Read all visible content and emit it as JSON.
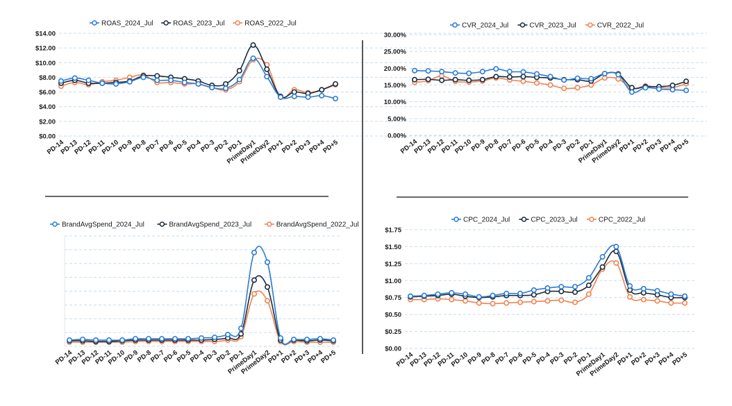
{
  "colors": {
    "s2024": "#2a7bd5",
    "s2023": "#1b2b3c",
    "s2022": "#f0834f",
    "grid": "#c7dcf0"
  },
  "chart_data": [
    {
      "type": "line",
      "position": "top-left",
      "categories": [
        "PD-14",
        "PD-13",
        "PD-12",
        "PD-11",
        "PD-10",
        "PD-9",
        "PD-8",
        "PD-7",
        "PD-6",
        "PD-5",
        "PD-4",
        "PD-3",
        "PD-2",
        "PD-1",
        "PrimeDay1",
        "PrimeDay2",
        "PD+1",
        "PD+2",
        "PD+3",
        "PD+4",
        "PD+5"
      ],
      "y_ticks": [
        "$0.00",
        "$2.00",
        "$4.00",
        "$6.00",
        "$8.00",
        "$10.00",
        "$12.00",
        "$14.00"
      ],
      "ylim": [
        0,
        14
      ],
      "legend_position": "top",
      "series": [
        {
          "name": "ROAS_2024_Jul",
          "values": [
            7.5,
            7.9,
            7.6,
            7.2,
            7.1,
            7.4,
            8.0,
            7.6,
            7.6,
            7.3,
            7.1,
            6.6,
            6.5,
            7.7,
            10.6,
            8.1,
            5.3,
            5.4,
            5.3,
            5.5,
            5.1
          ]
        },
        {
          "name": "ROAS_2023_Jul",
          "values": [
            7.2,
            7.6,
            7.2,
            7.2,
            7.3,
            7.5,
            8.2,
            8.2,
            8.0,
            7.8,
            7.5,
            6.9,
            7.1,
            8.9,
            12.4,
            9.1,
            5.4,
            6.0,
            5.8,
            6.3,
            7.1
          ]
        },
        {
          "name": "ROAS_2022_Jul",
          "values": [
            6.8,
            7.3,
            7.0,
            7.4,
            7.6,
            8.0,
            8.3,
            7.3,
            7.3,
            7.1,
            7.1,
            6.6,
            6.3,
            7.4,
            10.4,
            9.7,
            5.3,
            6.3,
            5.9,
            6.3,
            7.0
          ]
        }
      ]
    },
    {
      "type": "line",
      "position": "top-right",
      "categories": [
        "PD-14",
        "PD-13",
        "PD-12",
        "PD-11",
        "PD-10",
        "PD-9",
        "PD-8",
        "PD-7",
        "PD-6",
        "PD-5",
        "PD-4",
        "PD-3",
        "PD-2",
        "PD-1",
        "PrimeDay1",
        "PrimeDay2",
        "PD+1",
        "PD+2",
        "PD+3",
        "PD+4",
        "PD+5"
      ],
      "y_ticks": [
        "0.00%",
        "5.00%",
        "10.00%",
        "15.00%",
        "20.00%",
        "25.00%",
        "30.00%"
      ],
      "ylim": [
        0,
        30
      ],
      "legend_position": "top",
      "series": [
        {
          "name": "CVR_2024_Jul",
          "values": [
            19.3,
            19.2,
            19.0,
            18.6,
            18.5,
            19.0,
            19.8,
            19.0,
            18.9,
            18.3,
            17.5,
            16.5,
            17.0,
            16.9,
            18.4,
            18.1,
            12.9,
            14.2,
            13.8,
            13.6,
            13.4
          ]
        },
        {
          "name": "CVR_2023_Jul",
          "values": [
            16.6,
            16.7,
            16.4,
            16.6,
            16.4,
            16.6,
            17.5,
            17.4,
            17.5,
            17.3,
            17.1,
            16.6,
            16.6,
            16.2,
            18.4,
            18.3,
            14.2,
            14.5,
            14.5,
            14.9,
            16.1
          ]
        },
        {
          "name": "CVR_2022_Jul",
          "values": [
            15.8,
            16.3,
            17.7,
            16.1,
            15.9,
            16.2,
            17.1,
            16.5,
            16.1,
            15.6,
            15.0,
            14.0,
            14.2,
            15.0,
            17.1,
            16.8,
            14.0,
            14.7,
            14.3,
            14.2,
            15.4
          ]
        }
      ]
    },
    {
      "type": "line",
      "position": "bottom-left",
      "categories": [
        "PD-14",
        "PD-13",
        "PD-12",
        "PD-11",
        "PD-10",
        "PD-9",
        "PD-8",
        "PD-7",
        "PD-6",
        "PD-5",
        "PD-4",
        "PD-3",
        "PD-2",
        "PD-1",
        "PrimeDay1",
        "PrimeDay2",
        "PD+1",
        "PD+2",
        "PD+3",
        "PD+4",
        "PD+5"
      ],
      "y_ticks": [],
      "ylim": [
        0,
        8
      ],
      "legend_position": "top",
      "series": [
        {
          "name": "BrandAvgSpend_2024_Jul",
          "values": [
            0.45,
            0.5,
            0.45,
            0.45,
            0.45,
            0.55,
            0.55,
            0.55,
            0.55,
            0.55,
            0.6,
            0.65,
            0.85,
            1.3,
            6.8,
            6.1,
            0.6,
            0.5,
            0.5,
            0.55,
            0.45
          ]
        },
        {
          "name": "BrandAvgSpend_2023_Jul",
          "values": [
            0.4,
            0.4,
            0.35,
            0.35,
            0.4,
            0.45,
            0.45,
            0.45,
            0.45,
            0.45,
            0.45,
            0.5,
            0.6,
            0.9,
            4.8,
            4.3,
            0.45,
            0.45,
            0.4,
            0.45,
            0.4
          ]
        },
        {
          "name": "BrandAvgSpend_2022_Jul",
          "values": [
            0.3,
            0.3,
            0.3,
            0.3,
            0.3,
            0.35,
            0.35,
            0.35,
            0.35,
            0.35,
            0.35,
            0.35,
            0.45,
            0.7,
            3.8,
            3.3,
            0.35,
            0.35,
            0.3,
            0.3,
            0.3
          ]
        }
      ]
    },
    {
      "type": "line",
      "position": "bottom-right",
      "categories": [
        "PD-14",
        "PD-13",
        "PD-12",
        "PD-11",
        "PD-10",
        "PD-9",
        "PD-8",
        "PD-7",
        "PD-6",
        "PD-5",
        "PD-4",
        "PD-3",
        "PD-2",
        "PD-1",
        "PrimeDay1",
        "PrimeDay2",
        "PD+1",
        "PD+2",
        "PD+3",
        "PD+4",
        "PD+5"
      ],
      "y_ticks": [
        "$0.00",
        "$0.25",
        "$0.50",
        "$0.75",
        "$1.00",
        "$1.25",
        "$1.50",
        "$1.75"
      ],
      "ylim": [
        0,
        1.75
      ],
      "legend_position": "top",
      "series": [
        {
          "name": "CPC_2024_Jul",
          "values": [
            0.77,
            0.78,
            0.8,
            0.82,
            0.8,
            0.76,
            0.78,
            0.81,
            0.81,
            0.86,
            0.89,
            0.91,
            0.91,
            1.04,
            1.35,
            1.5,
            0.92,
            0.88,
            0.85,
            0.8,
            0.77
          ]
        },
        {
          "name": "CPC_2023_Jul",
          "values": [
            0.76,
            0.77,
            0.78,
            0.8,
            0.77,
            0.75,
            0.76,
            0.78,
            0.78,
            0.79,
            0.84,
            0.84,
            0.83,
            0.93,
            1.2,
            1.43,
            0.86,
            0.82,
            0.79,
            0.75,
            0.75
          ]
        },
        {
          "name": "CPC_2022_Jul",
          "values": [
            0.72,
            0.72,
            0.73,
            0.72,
            0.7,
            0.67,
            0.66,
            0.67,
            0.68,
            0.69,
            0.7,
            0.71,
            0.68,
            0.8,
            1.17,
            1.26,
            0.76,
            0.72,
            0.7,
            0.67,
            0.67
          ]
        }
      ]
    }
  ]
}
